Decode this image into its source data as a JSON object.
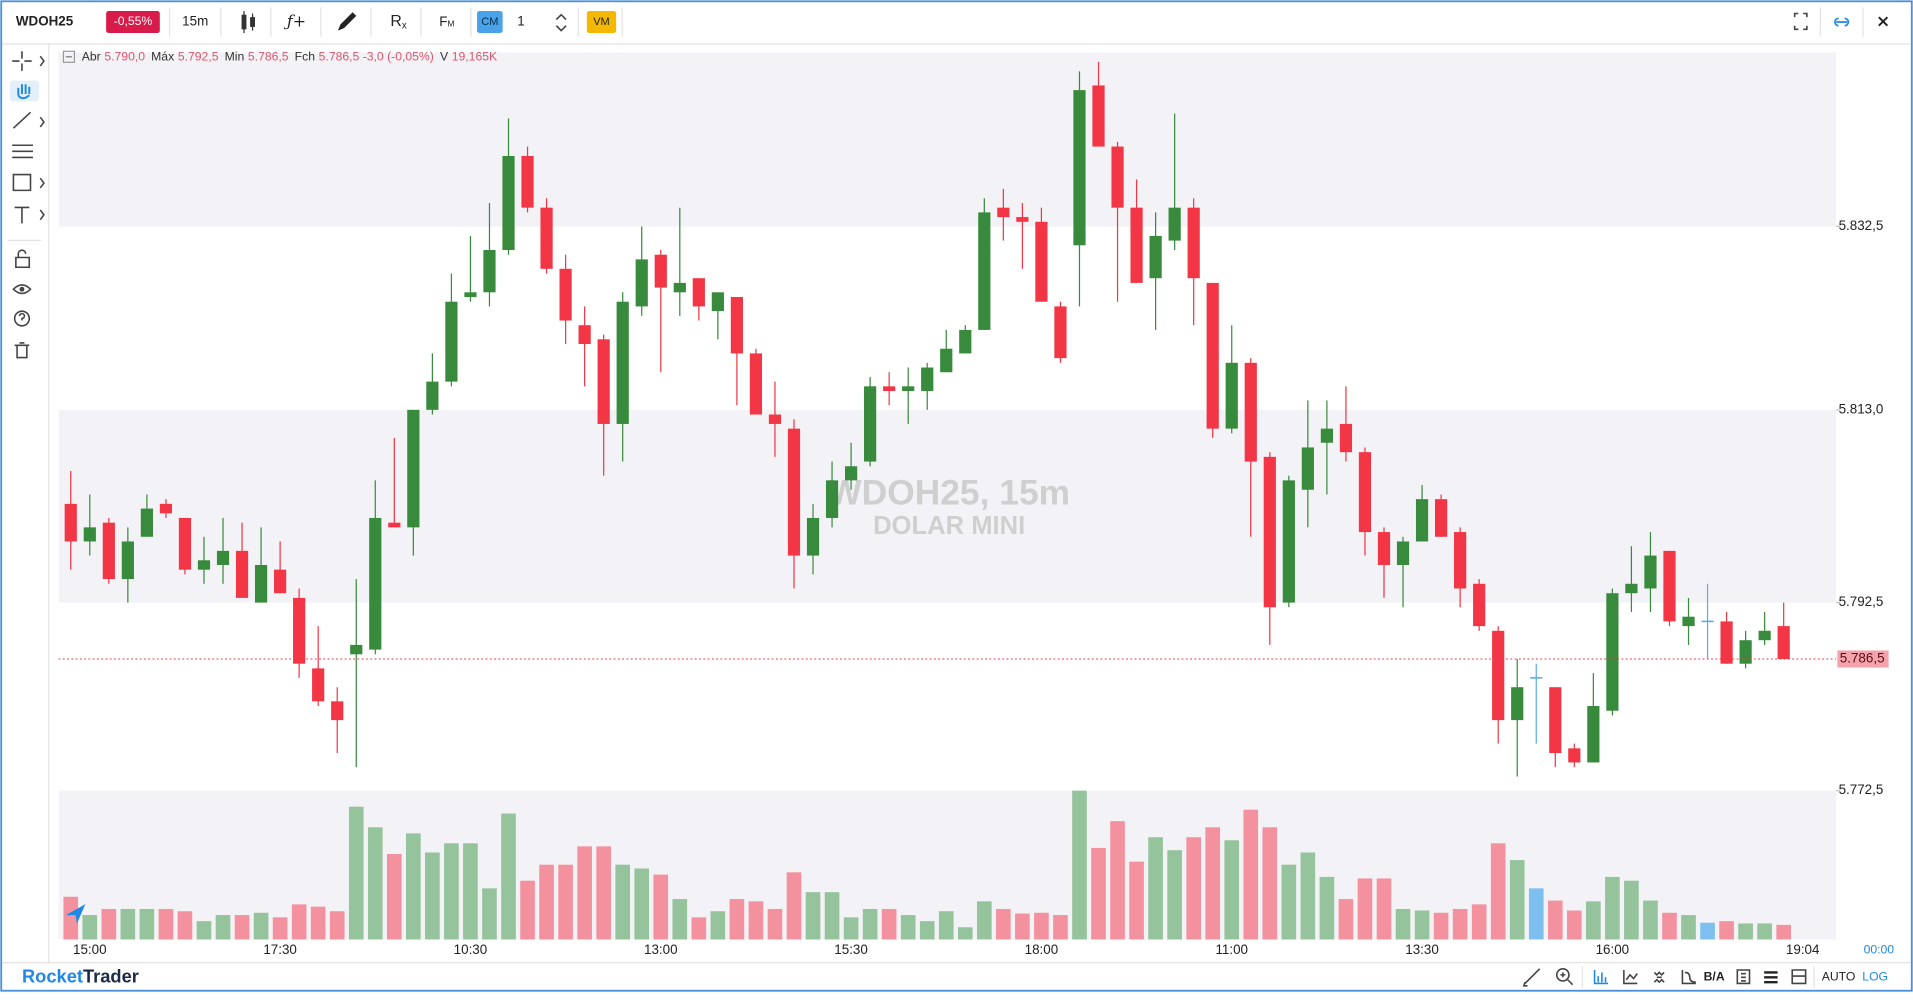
{
  "toolbar": {
    "symbol": "WDOH25",
    "change": "-0,55%",
    "interval": "15m",
    "formula": "ƒ+",
    "reset": "R",
    "reset_sub": "x",
    "fm": "F",
    "fm_sub": "M",
    "cm": "CM",
    "count": "1",
    "vm": "VM"
  },
  "ohlc_header": [
    {
      "label": "Abr",
      "value": "5.790,0"
    },
    {
      "label": "Máx",
      "value": "5.792,5"
    },
    {
      "label": "Min",
      "value": "5.786,5"
    },
    {
      "label": "Fch",
      "value": "5.786,5 -3,0 (-0,05%)"
    },
    {
      "label": "V",
      "value": "19,165K"
    }
  ],
  "watermark": {
    "symbol": "WDOH25, 15m",
    "name": "DOLAR MINI"
  },
  "footer": {
    "brand_a": "Rocket",
    "brand_b": "Trader",
    "ba": "B/A",
    "auto": "AUTO",
    "log": "LOG"
  },
  "chart_data": {
    "type": "candlestick",
    "open": [
      5803.0,
      5799.0,
      5801.0,
      5795.0,
      5799.5,
      5803.0,
      5801.5,
      5796.0,
      5796.5,
      5798.0,
      5792.5,
      5796.0,
      5793.0,
      5785.5,
      5782.0,
      5787.0,
      5787.5,
      5801.0,
      5800.5,
      5813.0,
      5816.0,
      5825.0,
      5825.5,
      5830.0,
      5840.0,
      5834.5,
      5828.0,
      5822.0,
      5820.5,
      5811.5,
      5824.0,
      5829.5,
      5825.5,
      5827.0,
      5823.5,
      5825.0,
      5819.0,
      5812.5,
      5811.0,
      5797.5,
      5801.5,
      5805.5,
      5807.5,
      5815.5,
      5815.0,
      5815.0,
      5817.0,
      5819.0,
      5821.5,
      5834.5,
      5833.5,
      5833.0,
      5824.0,
      5830.5,
      5847.5,
      5841.0,
      5834.5,
      5827.0,
      5831.0,
      5834.5,
      5826.5,
      5811.0,
      5818.0,
      5808.0,
      5792.5,
      5804.5,
      5809.5,
      5811.5,
      5808.5,
      5800.0,
      5796.5,
      5799.0,
      5803.5,
      5800.0,
      5794.5,
      5789.5,
      5780.0,
      5784.5,
      5783.5,
      5777.0,
      5775.5,
      5781.0,
      5793.5,
      5794.0,
      5798.0,
      5790.0,
      5790.5,
      5790.5,
      5786.0,
      5788.5,
      5790.0
    ],
    "high": [
      5806.5,
      5804.0,
      5801.5,
      5800.5,
      5804.0,
      5803.5,
      5801.5,
      5799.5,
      5801.5,
      5801.0,
      5800.5,
      5799.0,
      5794.0,
      5790.0,
      5783.5,
      5795.0,
      5805.5,
      5810.0,
      5813.0,
      5819.0,
      5827.5,
      5831.5,
      5835.0,
      5844.0,
      5841.0,
      5835.5,
      5829.5,
      5824.0,
      5821.0,
      5825.5,
      5832.5,
      5830.0,
      5834.5,
      5827.0,
      5825.5,
      5825.0,
      5819.5,
      5816.0,
      5812.0,
      5803.0,
      5807.5,
      5809.5,
      5816.5,
      5817.0,
      5817.5,
      5818.0,
      5821.5,
      5822.0,
      5835.5,
      5836.5,
      5835.0,
      5834.5,
      5824.5,
      5849.0,
      5850.0,
      5841.5,
      5837.5,
      5834.0,
      5844.5,
      5835.5,
      5826.5,
      5822.0,
      5818.5,
      5808.5,
      5806.0,
      5814.0,
      5814.0,
      5815.5,
      5809.0,
      5800.5,
      5799.5,
      5805.0,
      5804.0,
      5800.5,
      5795.0,
      5790.0,
      5786.5,
      5786.0,
      5783.5,
      5777.5,
      5785.0,
      5794.0,
      5798.5,
      5800.0,
      5798.0,
      5793.0,
      5794.5,
      5791.5,
      5789.5,
      5791.5,
      5792.5
    ],
    "low": [
      5796.0,
      5797.5,
      5794.5,
      5792.5,
      5799.5,
      5801.5,
      5795.5,
      5794.5,
      5794.5,
      5793.0,
      5792.5,
      5793.5,
      5784.5,
      5781.5,
      5776.5,
      5775.0,
      5787.0,
      5800.5,
      5797.5,
      5812.5,
      5815.5,
      5824.5,
      5824.0,
      5829.5,
      5834.0,
      5827.5,
      5820.0,
      5815.5,
      5806.0,
      5807.5,
      5823.0,
      5817.0,
      5823.0,
      5822.5,
      5820.5,
      5813.5,
      5812.5,
      5808.0,
      5794.0,
      5795.5,
      5800.5,
      5804.5,
      5807.0,
      5813.5,
      5811.5,
      5813.0,
      5817.0,
      5819.0,
      5821.5,
      5831.0,
      5828.0,
      5824.5,
      5818.0,
      5824.0,
      5841.0,
      5824.5,
      5826.5,
      5821.5,
      5830.0,
      5822.0,
      5810.0,
      5810.5,
      5799.5,
      5788.0,
      5792.0,
      5800.5,
      5804.0,
      5807.5,
      5797.5,
      5793.0,
      5792.0,
      5799.0,
      5799.5,
      5792.0,
      5789.5,
      5777.5,
      5774.0,
      5777.5,
      5775.0,
      5775.0,
      5775.5,
      5780.5,
      5791.5,
      5791.5,
      5790.0,
      5788.0,
      5786.5,
      5786.0,
      5785.5,
      5788.0,
      5786.5
    ],
    "close": [
      5799.0,
      5800.5,
      5795.0,
      5799.0,
      5802.5,
      5802.0,
      5796.0,
      5797.0,
      5798.0,
      5793.0,
      5796.5,
      5793.5,
      5786.0,
      5782.0,
      5780.0,
      5788.0,
      5801.5,
      5800.5,
      5813.0,
      5816.0,
      5824.5,
      5825.5,
      5830.0,
      5840.0,
      5834.5,
      5828.0,
      5822.5,
      5820.0,
      5811.5,
      5824.5,
      5829.0,
      5826.0,
      5826.5,
      5824.0,
      5825.5,
      5819.0,
      5812.5,
      5811.5,
      5797.5,
      5801.5,
      5805.5,
      5807.0,
      5815.5,
      5815.0,
      5815.5,
      5817.5,
      5819.5,
      5821.5,
      5834.0,
      5833.5,
      5833.0,
      5824.5,
      5818.5,
      5847.0,
      5841.0,
      5834.5,
      5826.5,
      5831.5,
      5834.5,
      5827.0,
      5811.0,
      5818.0,
      5807.5,
      5792.0,
      5805.5,
      5809.0,
      5811.0,
      5808.5,
      5800.0,
      5796.5,
      5799.0,
      5803.5,
      5799.5,
      5794.0,
      5790.0,
      5780.0,
      5783.5,
      5784.5,
      5776.5,
      5775.5,
      5781.5,
      5793.5,
      5794.5,
      5797.5,
      5790.5,
      5791.0,
      5790.5,
      5786.0,
      5788.5,
      5789.5,
      5786.5
    ],
    "volume": {
      "values": [
        56,
        32,
        40,
        40,
        40,
        40,
        37,
        24,
        32,
        32,
        35,
        29,
        46,
        43,
        37,
        174,
        147,
        112,
        139,
        114,
        126,
        126,
        67,
        165,
        77,
        98,
        98,
        122,
        122,
        98,
        93,
        85,
        53,
        29,
        37,
        53,
        50,
        40,
        88,
        62,
        62,
        29,
        40,
        40,
        32,
        24,
        37,
        16,
        50,
        40,
        34,
        35,
        32,
        195,
        120,
        155,
        102,
        134,
        117,
        134,
        147,
        130,
        170,
        147,
        98,
        114,
        82,
        53,
        80,
        80,
        40,
        38,
        35,
        40,
        46,
        126,
        104,
        67,
        51,
        38,
        50,
        82,
        77,
        51,
        35,
        32,
        22,
        24,
        21,
        21,
        19.165
      ],
      "ylim": [
        0,
        195
      ]
    },
    "ylim": [
      5772.5,
      5851.0
    ],
    "yticks": [
      {
        "value": 5772.5,
        "label": "5.772,5"
      },
      {
        "value": 5792.5,
        "label": "5.792,5"
      },
      {
        "value": 5813.0,
        "label": "5.813,0"
      },
      {
        "value": 5832.5,
        "label": "5.832,5"
      }
    ],
    "last_price": {
      "value": 5786.5,
      "label": "5.786,5"
    },
    "xtick_labels": [
      "15:00",
      "17:30",
      "10:30",
      "13:00",
      "15:30",
      "18:00",
      "11:00",
      "13:30",
      "16:00",
      "19:04"
    ],
    "clock": "00:00",
    "colors": {
      "up": "#388a3c",
      "down": "#f23645",
      "flat": "#5aaee8",
      "vol_up": "#94c39c",
      "vol_down": "#f3929e",
      "vol_flat": "#7dc0ef",
      "band": "#f3f3f7"
    }
  }
}
